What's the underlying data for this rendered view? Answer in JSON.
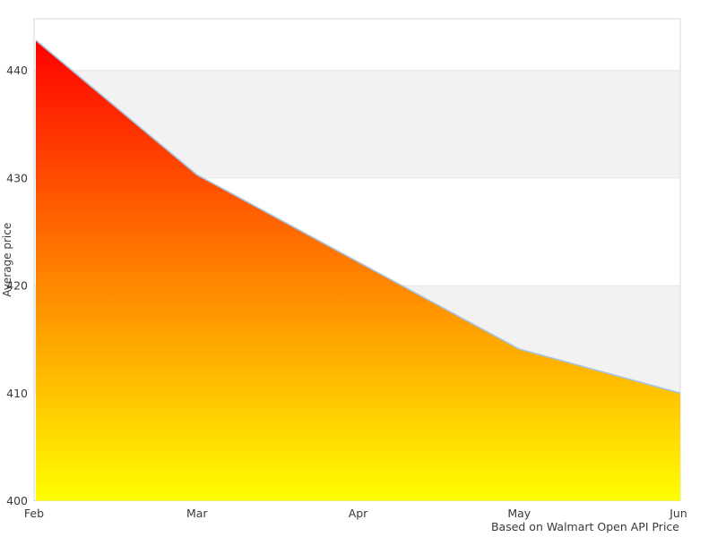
{
  "chart_data": {
    "type": "area",
    "categories": [
      "Feb",
      "Mar",
      "Apr",
      "May",
      "Jun"
    ],
    "values": [
      442.8,
      430.3,
      422.2,
      414.1,
      410.0
    ],
    "title": "",
    "xlabel": "",
    "ylabel": "Average price",
    "caption": "Based on Walmart Open API Price",
    "ylim": [
      400,
      444.8
    ],
    "yticks": [
      400,
      410,
      420,
      430,
      440
    ],
    "grid": "alternating-horizontal-bands",
    "legend": "none",
    "colors": {
      "gradient_top": "#ff0000",
      "gradient_bottom": "#ffff00",
      "line": "#a6c3e0",
      "band_base": "#ffffff",
      "band_alt": "#f2f2f2",
      "gridline": "#e6e6e6",
      "plot_border": "#d9d9d9",
      "text": "#3a3a3a",
      "background": "#ffffff"
    }
  }
}
